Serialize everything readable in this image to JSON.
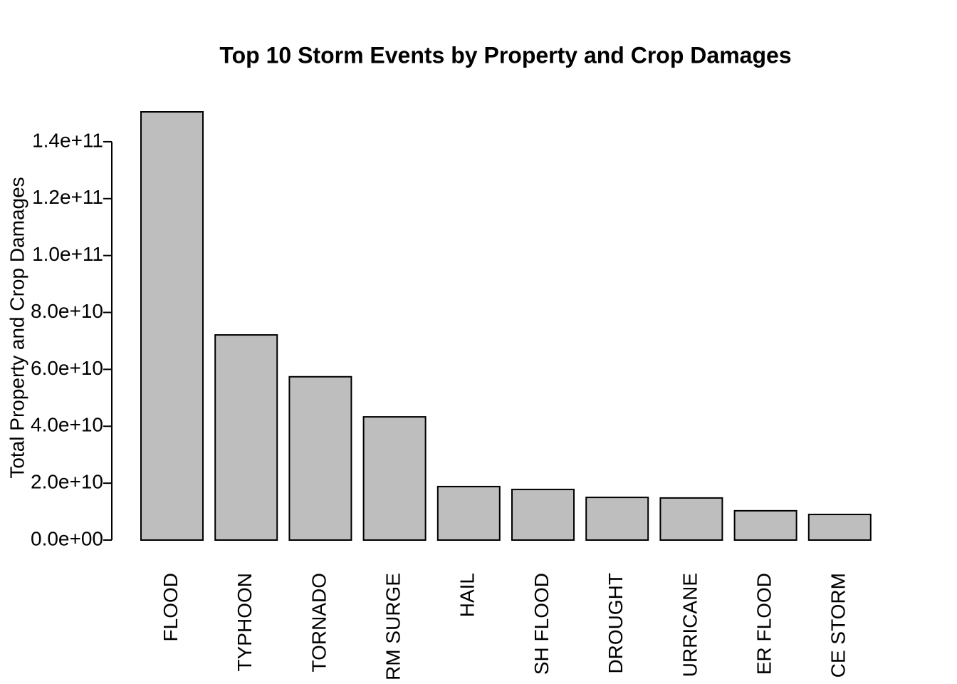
{
  "chart_data": {
    "type": "bar",
    "title": "Top 10 Storm Events by Property and Crop Damages",
    "y_label": "Total Property and Crop Damages",
    "categories": [
      "FLOOD",
      "TYPHOON",
      "TORNADO",
      "RM SURGE",
      "HAIL",
      "SH FLOOD",
      "DROUGHT",
      "URRICANE",
      "ER FLOOD",
      "CE STORM"
    ],
    "values": [
      150500000000,
      72100000000,
      57400000000,
      43300000000,
      18800000000,
      17800000000,
      15000000000,
      14800000000,
      10300000000,
      9000000000
    ],
    "color": "#bebebe",
    "ylim": [
      0,
      150500000000
    ],
    "yticks": [
      {
        "value": 0,
        "label": "0.0e+00"
      },
      {
        "value": 20000000000,
        "label": "2.0e+10"
      },
      {
        "value": 40000000000,
        "label": "4.0e+10"
      },
      {
        "value": 60000000000,
        "label": "6.0e+10"
      },
      {
        "value": 80000000000,
        "label": "8.0e+10"
      },
      {
        "value": 100000000000,
        "label": "1.0e+11"
      },
      {
        "value": 120000000000,
        "label": "1.2e+11"
      },
      {
        "value": 140000000000,
        "label": "1.4e+11"
      }
    ],
    "grid": false
  }
}
